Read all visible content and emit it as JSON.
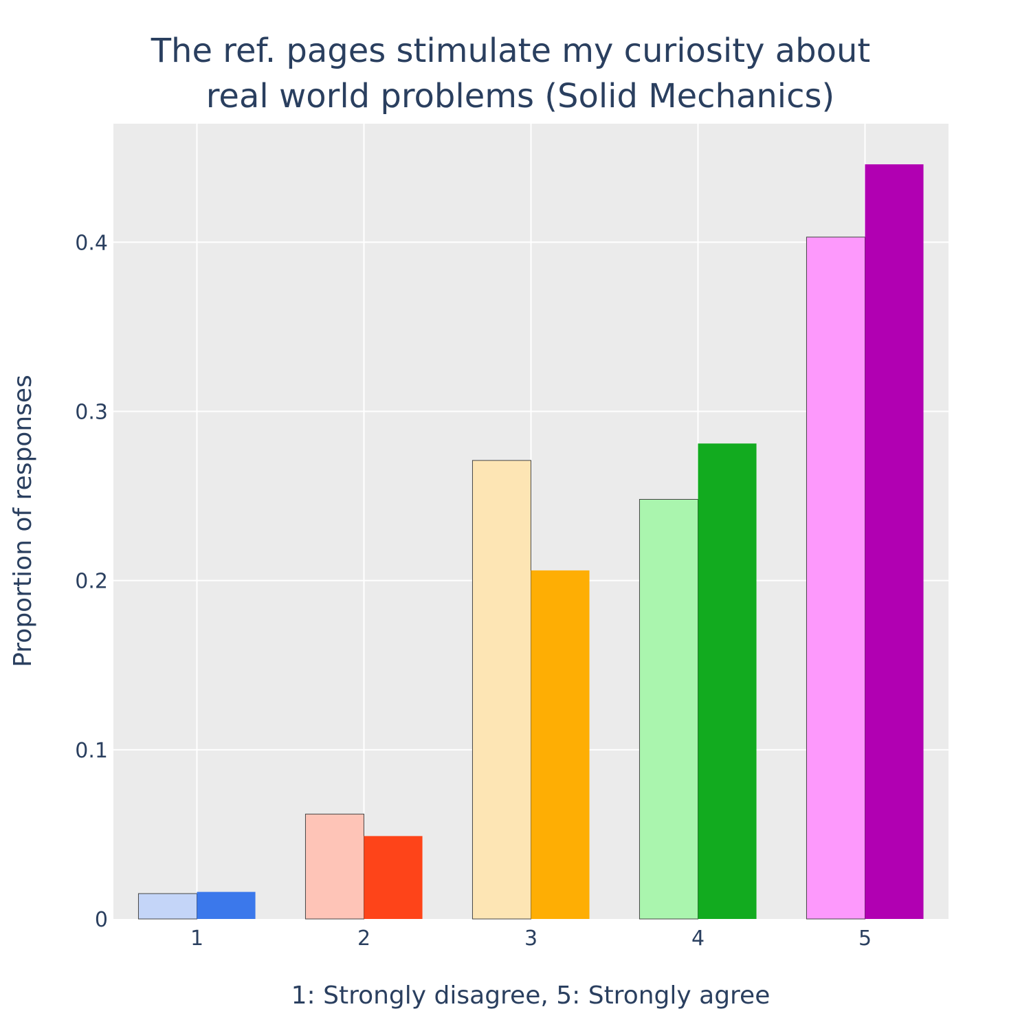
{
  "chart_data": {
    "type": "bar",
    "title_lines": [
      "The ref. pages stimulate my curiosity about",
      "real world problems (Solid Mechanics)"
    ],
    "xlabel": "1: Strongly disagree, 5: Strongly agree",
    "ylabel": "Proportion of responses",
    "categories": [
      "1",
      "2",
      "3",
      "4",
      "5"
    ],
    "ylim": [
      0,
      0.47
    ],
    "yticks": [
      0,
      0.1,
      0.2,
      0.3,
      0.4
    ],
    "ytick_labels": [
      "0",
      "0.1",
      "0.2",
      "0.3",
      "0.4"
    ],
    "grid": true,
    "legend": "none",
    "series": [
      {
        "values": [
          0.015,
          0.062,
          0.271,
          0.248,
          0.403
        ],
        "colors": [
          "#c4d5f8",
          "#fec4b7",
          "#fde5b4",
          "#aaf5ae",
          "#fd99fc"
        ],
        "outline": "#444444"
      },
      {
        "values": [
          0.016,
          0.049,
          0.206,
          0.281,
          0.446
        ],
        "colors": [
          "#3b78eb",
          "#fe4419",
          "#feae04",
          "#12ab1f",
          "#b100b2"
        ],
        "outline": "none"
      }
    ],
    "plot_background": "#ebebeb",
    "grid_color": "#ffffff",
    "text_color": "#2a3f5f"
  }
}
